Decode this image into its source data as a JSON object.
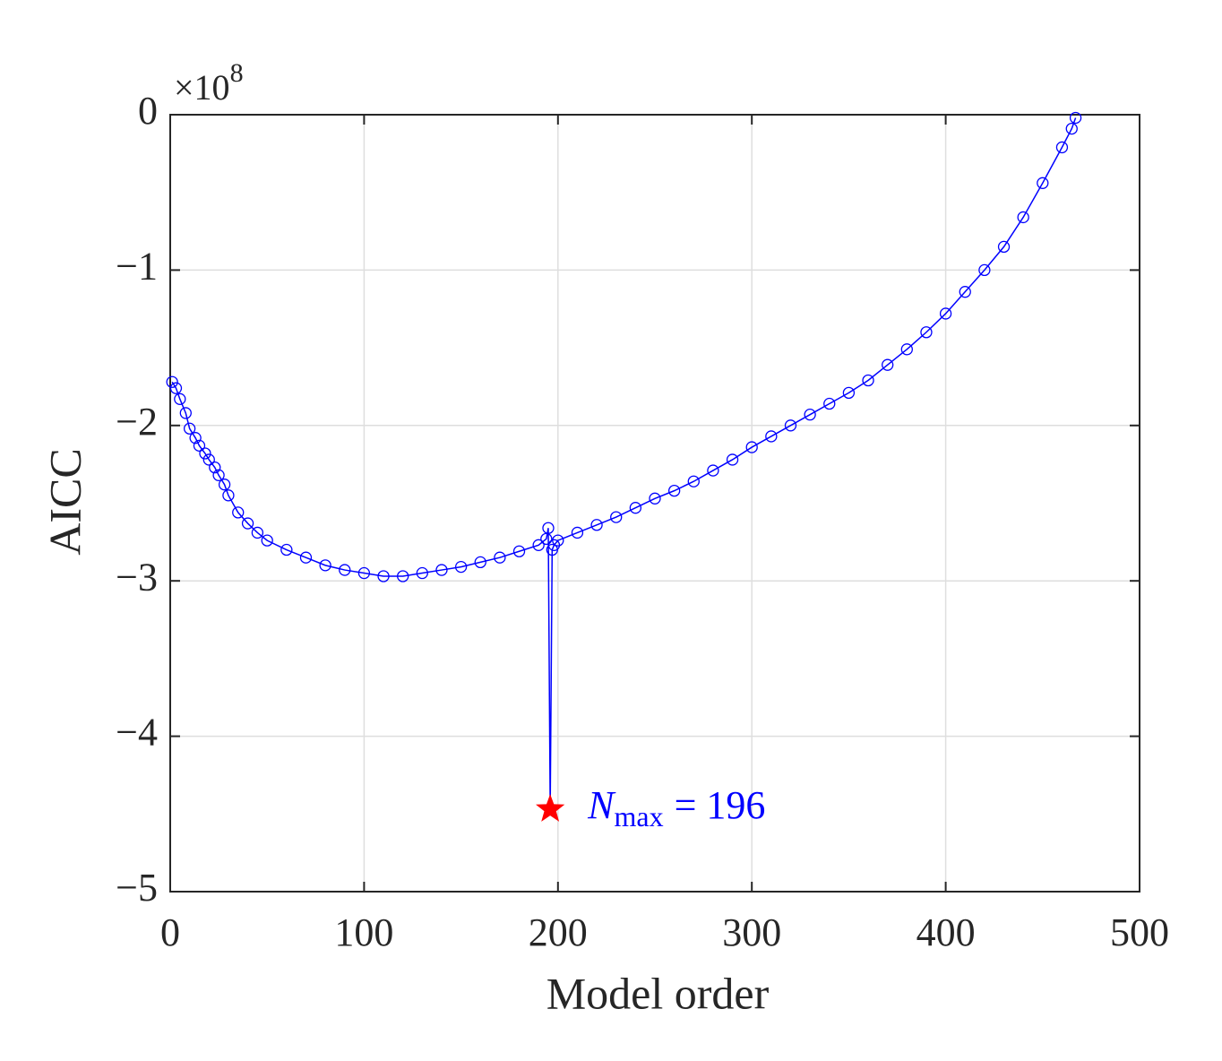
{
  "chart_data": {
    "type": "line",
    "x_label": "Model order",
    "y_label": "AICC",
    "y_multiplier": {
      "base": "×10",
      "exponent": "8"
    },
    "x": [
      1,
      3,
      5,
      8,
      10,
      13,
      15,
      18,
      20,
      23,
      25,
      28,
      30,
      35,
      40,
      45,
      50,
      60,
      70,
      80,
      90,
      100,
      110,
      120,
      130,
      140,
      150,
      160,
      170,
      180,
      190,
      194,
      195,
      196,
      197,
      198,
      200,
      210,
      220,
      230,
      240,
      250,
      260,
      270,
      280,
      290,
      300,
      310,
      320,
      330,
      340,
      350,
      360,
      370,
      380,
      390,
      400,
      410,
      420,
      430,
      440,
      450,
      460,
      465,
      467
    ],
    "series": [
      {
        "color": "#0000ff",
        "values": [
          -1.72,
          -1.76,
          -1.83,
          -1.92,
          -2.02,
          -2.08,
          -2.13,
          -2.18,
          -2.22,
          -2.27,
          -2.32,
          -2.38,
          -2.45,
          -2.56,
          -2.63,
          -2.69,
          -2.74,
          -2.8,
          -2.85,
          -2.9,
          -2.93,
          -2.95,
          -2.97,
          -2.97,
          -2.95,
          -2.93,
          -2.91,
          -2.88,
          -2.85,
          -2.81,
          -2.77,
          -2.73,
          -2.66,
          -4.47,
          -2.8,
          -2.77,
          -2.74,
          -2.69,
          -2.64,
          -2.59,
          -2.53,
          -2.47,
          -2.42,
          -2.36,
          -2.29,
          -2.22,
          -2.14,
          -2.07,
          -2.0,
          -1.93,
          -1.86,
          -1.79,
          -1.71,
          -1.61,
          -1.51,
          -1.4,
          -1.28,
          -1.14,
          -1.0,
          -0.85,
          -0.66,
          -0.44,
          -0.21,
          -0.09,
          -0.02
        ]
      }
    ],
    "annotation": {
      "x": 196,
      "y": -4.47,
      "color": "#ff0000",
      "text_color": "#0000ff",
      "symbol": "N",
      "subscript": "max",
      "text": "= 196"
    },
    "xlim": [
      0,
      500
    ],
    "ylim": [
      -5,
      0
    ],
    "xticks": [
      0,
      100,
      200,
      300,
      400,
      500
    ],
    "yticks": [
      {
        "value": -5,
        "label": "−5"
      },
      {
        "value": -4,
        "label": "−4"
      },
      {
        "value": -3,
        "label": "−3"
      },
      {
        "value": -2,
        "label": "−2"
      },
      {
        "value": -1,
        "label": "−1"
      },
      0
    ],
    "grid": true
  }
}
